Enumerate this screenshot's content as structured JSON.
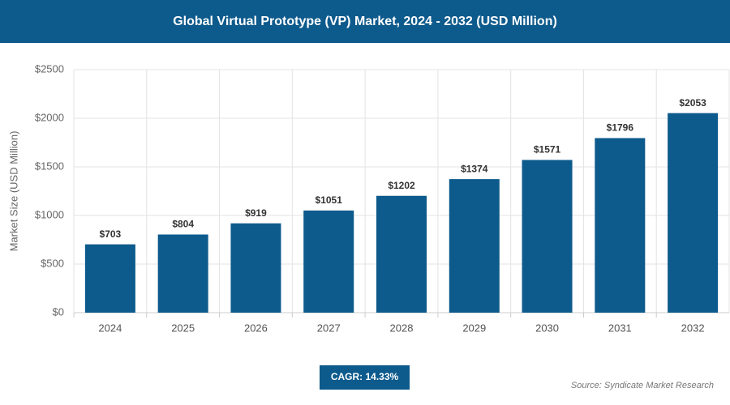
{
  "chart_data": {
    "type": "bar",
    "title": "Global Virtual Prototype (VP) Market, 2024 - 2032 (USD Million)",
    "y_label": "Market Size (USD Million)",
    "categories": [
      "2024",
      "2025",
      "2026",
      "2027",
      "2028",
      "2029",
      "2030",
      "2031",
      "2032"
    ],
    "values": [
      703,
      804,
      919,
      1051,
      1202,
      1374,
      1571,
      1796,
      2053
    ],
    "value_labels": [
      "$703",
      "$804",
      "$919",
      "$1051",
      "$1202",
      "$1374",
      "$1571",
      "$1796",
      "$2053"
    ],
    "color": "#0d5a8c",
    "ylim": [
      0,
      2500
    ],
    "yticks": [
      {
        "value": 0,
        "label": "$0"
      },
      {
        "value": 500,
        "label": "$500"
      },
      {
        "value": 1000,
        "label": "$1000"
      },
      {
        "value": 1500,
        "label": "$1500"
      },
      {
        "value": 2000,
        "label": "$2000"
      },
      {
        "value": 2500,
        "label": "$2500"
      }
    ],
    "grid": true,
    "cagr": "CAGR: 14.33%",
    "source": "Source: Syndicate Market Research"
  }
}
